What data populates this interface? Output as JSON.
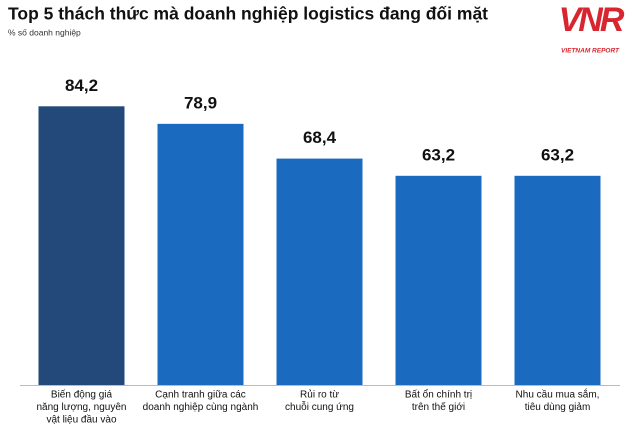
{
  "chart_data": {
    "type": "bar",
    "title": "Top 5 thách thức mà doanh nghiệp logistics đang đối mặt",
    "subtitle": "% số doanh nghiệp",
    "categories": [
      [
        "Biến động giá",
        "năng lượng, nguyên",
        "vật liệu đầu vào"
      ],
      [
        "Cạnh tranh giữa các",
        "doanh nghiệp cùng ngành"
      ],
      [
        "Rủi ro từ",
        "chuỗi cung ứng"
      ],
      [
        "Bất ổn chính trị",
        "trên thế giới"
      ],
      [
        "Nhu cầu mua sắm,",
        "tiêu dùng giảm"
      ]
    ],
    "values": [
      84.2,
      78.9,
      68.4,
      63.2,
      63.2
    ],
    "value_labels": [
      "84,2",
      "78,9",
      "68,4",
      "63,2",
      "63,2"
    ],
    "colors": [
      "#22497a",
      "#1a6bc0",
      "#1a6bc0",
      "#1a6bc0",
      "#1a6bc0"
    ],
    "ylim": [
      0,
      100
    ]
  },
  "logo": {
    "mark": "VNR",
    "caption": "VIETNAM REPORT"
  }
}
